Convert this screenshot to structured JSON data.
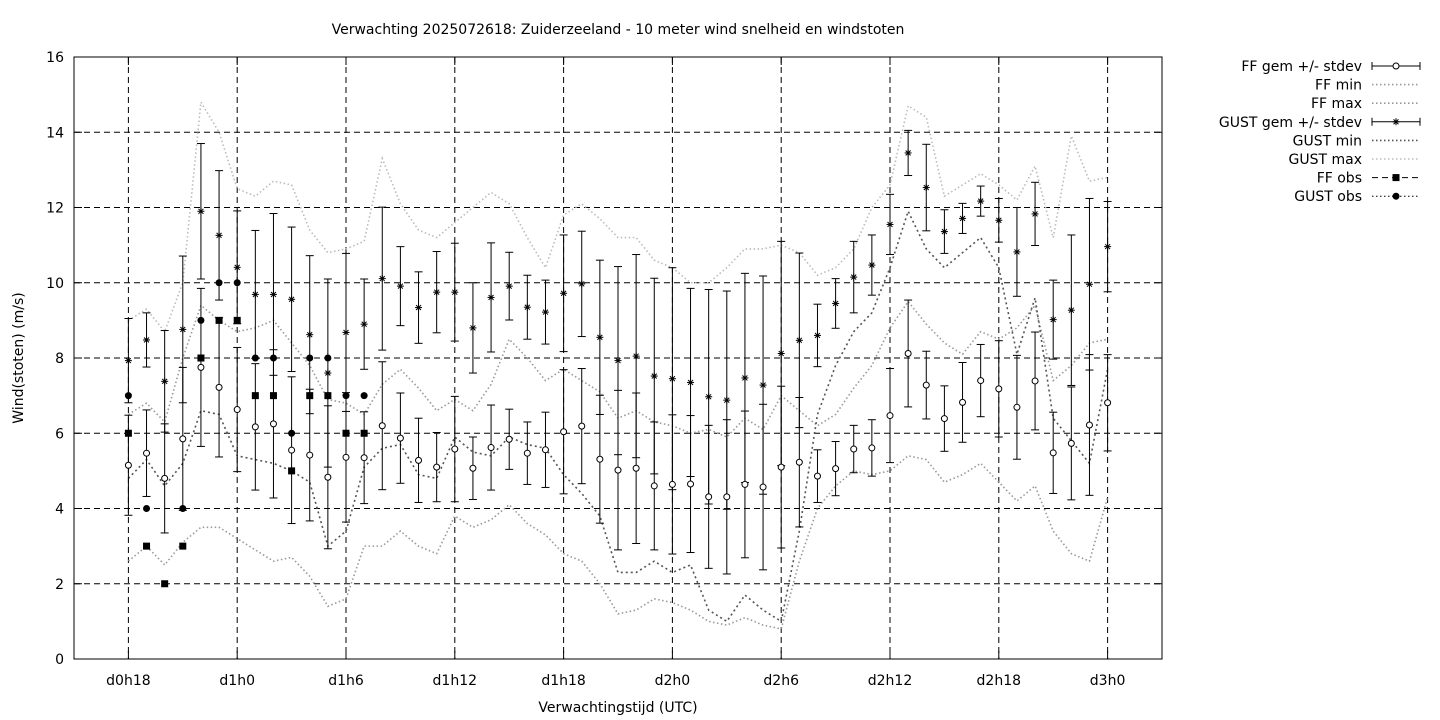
{
  "chart_data": {
    "type": "line",
    "title": "Verwachting 2025072618: Zuiderzeeland - 10 meter wind snelheid en windstoten",
    "xlabel": "Verwachtingstijd (UTC)",
    "ylabel": "Wind(stoten) (m/s)",
    "ylim": [
      0,
      16
    ],
    "xlim": [
      15,
      75
    ],
    "grid": true,
    "legend_position": "outside-right",
    "yticks": [
      0,
      2,
      4,
      6,
      8,
      10,
      12,
      14,
      16
    ],
    "xticks": [
      {
        "x": 18,
        "label": "d0h18"
      },
      {
        "x": 24,
        "label": "d1h0"
      },
      {
        "x": 30,
        "label": "d1h6"
      },
      {
        "x": 36,
        "label": "d1h12"
      },
      {
        "x": 42,
        "label": "d1h18"
      },
      {
        "x": 48,
        "label": "d2h0"
      },
      {
        "x": 54,
        "label": "d2h6"
      },
      {
        "x": 60,
        "label": "d2h12"
      },
      {
        "x": 66,
        "label": "d2h18"
      },
      {
        "x": 72,
        "label": "d3h0"
      }
    ],
    "x": [
      18,
      19,
      20,
      21,
      22,
      23,
      24,
      25,
      26,
      27,
      28,
      29,
      30,
      31,
      32,
      33,
      34,
      35,
      36,
      37,
      38,
      39,
      40,
      41,
      42,
      43,
      44,
      45,
      46,
      47,
      48,
      49,
      50,
      51,
      52,
      53,
      54,
      55,
      56,
      57,
      58,
      59,
      60,
      61,
      62,
      63,
      64,
      65,
      66,
      67,
      68,
      69,
      70,
      71,
      72
    ],
    "series": [
      {
        "name": "FF gem +/- stdev",
        "style": "errorbar-open-circle",
        "values": [
          5.15,
          5.47,
          4.8,
          5.85,
          7.75,
          7.22,
          6.63,
          6.17,
          6.25,
          5.55,
          5.42,
          4.83,
          5.36,
          5.35,
          6.2,
          5.87,
          5.28,
          5.1,
          5.58,
          5.07,
          5.62,
          5.84,
          5.47,
          5.56,
          6.04,
          6.19,
          5.31,
          5.02,
          5.07,
          4.6,
          4.64,
          4.65,
          4.31,
          4.31,
          4.64,
          4.57,
          5.1,
          5.23,
          4.86,
          5.06,
          5.58,
          5.61,
          6.47,
          8.12,
          7.28,
          6.39,
          6.82,
          7.4,
          7.18,
          6.69,
          7.39,
          5.48,
          5.73,
          6.22,
          6.81
        ],
        "stdev": [
          1.33,
          1.15,
          1.45,
          1.9,
          2.1,
          1.85,
          1.65,
          1.68,
          1.97,
          1.95,
          1.75,
          1.9,
          1.72,
          1.22,
          1.7,
          1.2,
          1.12,
          0.92,
          1.4,
          0.83,
          1.13,
          0.8,
          0.83,
          1.0,
          1.65,
          1.53,
          1.7,
          2.12,
          2.0,
          1.7,
          1.85,
          1.82,
          1.9,
          2.05,
          1.95,
          2.2,
          2.15,
          1.72,
          0.7,
          0.72,
          0.63,
          0.75,
          1.25,
          1.42,
          0.9,
          0.87,
          1.06,
          0.96,
          1.28,
          1.38,
          1.3,
          1.08,
          1.5,
          1.87,
          1.28
        ],
        "color": "#000000"
      },
      {
        "name": "FF min",
        "style": "dotted",
        "values": [
          2.6,
          3.0,
          2.5,
          3.1,
          3.5,
          3.5,
          3.2,
          2.9,
          2.6,
          2.7,
          2.2,
          1.4,
          1.6,
          3.0,
          3.0,
          3.4,
          3.0,
          2.8,
          3.8,
          3.5,
          3.7,
          4.1,
          3.6,
          3.3,
          2.8,
          2.6,
          2.0,
          1.2,
          1.3,
          1.6,
          1.5,
          1.3,
          1.0,
          0.9,
          1.1,
          0.9,
          0.8,
          2.6,
          4.0,
          4.6,
          5.0,
          4.9,
          5.0,
          5.4,
          5.3,
          4.7,
          4.9,
          5.2,
          4.7,
          4.2,
          4.6,
          3.4,
          2.8,
          2.6,
          4.3
        ],
        "color": "#999999"
      },
      {
        "name": "FF max",
        "style": "dotted",
        "values": [
          6.5,
          6.8,
          6.3,
          8.0,
          9.4,
          9.0,
          8.7,
          8.8,
          9.0,
          8.4,
          7.8,
          6.9,
          6.8,
          6.5,
          7.3,
          7.7,
          7.2,
          6.6,
          6.9,
          6.6,
          7.3,
          8.5,
          8.0,
          7.4,
          7.7,
          7.4,
          7.1,
          6.4,
          6.6,
          6.3,
          6.2,
          6.0,
          6.1,
          5.9,
          6.4,
          6.1,
          7.0,
          6.6,
          6.2,
          6.5,
          7.2,
          7.8,
          8.8,
          9.5,
          8.9,
          8.4,
          8.1,
          8.7,
          8.5,
          8.8,
          9.4,
          7.4,
          7.8,
          8.4,
          8.5
        ],
        "color": "#999999"
      },
      {
        "name": "GUST gem +/- stdev",
        "style": "errorbar-star",
        "values": [
          7.93,
          8.48,
          7.38,
          8.76,
          11.9,
          11.26,
          10.41,
          9.69,
          9.69,
          9.56,
          8.62,
          7.6,
          8.68,
          8.9,
          10.11,
          9.91,
          9.34,
          9.75,
          9.75,
          8.8,
          9.61,
          9.91,
          9.35,
          9.22,
          9.72,
          9.97,
          8.55,
          7.93,
          8.05,
          7.52,
          7.45,
          7.35,
          6.97,
          6.88,
          7.47,
          7.28,
          8.12,
          8.47,
          8.6,
          9.45,
          10.15,
          10.47,
          11.55,
          13.45,
          12.53,
          11.36,
          11.71,
          12.17,
          11.66,
          10.82,
          11.83,
          9.02,
          9.27,
          9.96,
          10.96
        ],
        "stdev": [
          1.12,
          0.72,
          1.35,
          1.95,
          1.8,
          1.72,
          1.5,
          1.7,
          2.15,
          1.92,
          2.1,
          2.5,
          2.1,
          1.2,
          1.9,
          1.05,
          0.95,
          1.08,
          1.3,
          1.2,
          1.45,
          0.9,
          0.85,
          0.85,
          1.55,
          1.4,
          2.05,
          2.5,
          2.7,
          2.6,
          2.95,
          2.5,
          2.85,
          2.9,
          2.78,
          2.9,
          2.98,
          2.32,
          0.83,
          0.66,
          0.95,
          0.8,
          0.8,
          0.6,
          1.15,
          0.58,
          0.4,
          0.4,
          0.58,
          1.18,
          0.84,
          1.05,
          2.0,
          2.28,
          1.2
        ],
        "color": "#000000"
      },
      {
        "name": "GUST min",
        "style": "dotted",
        "values": [
          4.8,
          5.3,
          4.6,
          5.2,
          6.6,
          6.5,
          5.4,
          5.3,
          5.2,
          5.0,
          4.7,
          3.0,
          3.4,
          5.1,
          5.6,
          5.7,
          4.9,
          4.8,
          5.9,
          5.5,
          5.4,
          5.9,
          5.7,
          5.6,
          4.9,
          4.4,
          3.8,
          2.3,
          2.3,
          2.6,
          2.3,
          2.5,
          1.3,
          1.0,
          1.7,
          1.3,
          1.0,
          3.4,
          6.5,
          7.8,
          8.7,
          9.2,
          10.4,
          11.9,
          10.9,
          10.4,
          10.8,
          11.2,
          10.4,
          8.1,
          9.6,
          6.4,
          5.8,
          5.2,
          7.7
        ],
        "color": "#555555"
      },
      {
        "name": "GUST max",
        "style": "dotted",
        "values": [
          9.0,
          9.3,
          8.7,
          10.0,
          14.8,
          14.0,
          12.5,
          12.3,
          12.7,
          12.6,
          11.4,
          10.8,
          10.9,
          11.1,
          13.3,
          12.1,
          11.4,
          11.2,
          11.6,
          12.0,
          12.4,
          12.1,
          11.2,
          10.4,
          11.8,
          12.1,
          11.7,
          11.2,
          11.2,
          10.6,
          10.4,
          10.0,
          10.0,
          10.4,
          10.9,
          10.9,
          11.0,
          10.8,
          10.2,
          10.4,
          10.9,
          12.0,
          12.6,
          14.7,
          14.4,
          12.3,
          12.6,
          12.9,
          12.6,
          12.2,
          13.1,
          11.2,
          13.9,
          12.7,
          12.8
        ],
        "color": "#bbbbbb"
      },
      {
        "name": "FF obs",
        "style": "filled-square",
        "x": [
          18,
          19,
          20,
          21,
          22,
          23,
          24,
          25,
          26,
          27,
          28,
          29,
          30,
          31
        ],
        "values": [
          6,
          3,
          2,
          3,
          8,
          9,
          9,
          7,
          7,
          5,
          7,
          7,
          6,
          6
        ],
        "color": "#000000"
      },
      {
        "name": "GUST obs",
        "style": "filled-circle",
        "x": [
          18,
          19,
          20,
          21,
          22,
          23,
          24,
          25,
          26,
          27,
          28,
          29,
          30,
          31
        ],
        "values": [
          7,
          4,
          null,
          4,
          9,
          10,
          10,
          8,
          8,
          6,
          8,
          8,
          7,
          7
        ],
        "color": "#000000"
      }
    ]
  }
}
